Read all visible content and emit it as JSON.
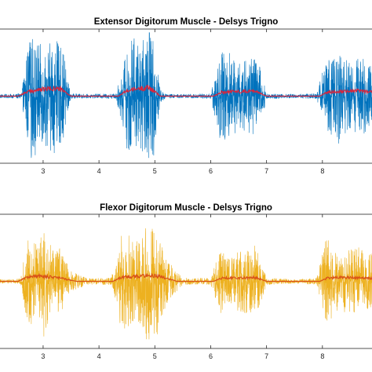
{
  "chart_data": [
    {
      "type": "line",
      "title": "Extensor Digitorum Muscle - Delsys Trigno",
      "xlabel": "",
      "ylabel": "",
      "x_ticks": [
        3,
        4,
        5,
        6,
        7,
        8
      ],
      "grid": false,
      "xlim": [
        2.2,
        9.0
      ],
      "ylim": [
        -1,
        1
      ],
      "series": [
        {
          "role": "raw-emg",
          "color": "#0072BD",
          "x": [
            2.2,
            2.5,
            2.6,
            2.65,
            2.7,
            2.8,
            2.9,
            3.0,
            3.1,
            3.2,
            3.3,
            3.4,
            3.45,
            3.5,
            3.8,
            4.3,
            4.4,
            4.5,
            4.6,
            4.7,
            4.8,
            4.9,
            5.0,
            5.05,
            5.1,
            5.2,
            5.5,
            6.0,
            6.1,
            6.2,
            6.3,
            6.4,
            6.5,
            6.6,
            6.7,
            6.8,
            6.9,
            7.0,
            7.5,
            7.9,
            8.0,
            8.1,
            8.2,
            8.3,
            8.4,
            8.5,
            8.6,
            8.7,
            8.8,
            9.0
          ],
          "amplitude": [
            0.03,
            0.03,
            0.05,
            0.25,
            0.65,
            0.9,
            0.85,
            0.7,
            0.8,
            0.85,
            0.75,
            0.55,
            0.2,
            0.04,
            0.03,
            0.04,
            0.35,
            0.8,
            0.9,
            0.75,
            0.85,
            0.95,
            0.9,
            0.5,
            0.1,
            0.03,
            0.03,
            0.04,
            0.4,
            0.7,
            0.65,
            0.55,
            0.5,
            0.55,
            0.6,
            0.65,
            0.4,
            0.04,
            0.03,
            0.04,
            0.35,
            0.55,
            0.6,
            0.65,
            0.55,
            0.5,
            0.55,
            0.6,
            0.5,
            0.4
          ]
        },
        {
          "role": "envelope",
          "color": "#D7263D",
          "x": [
            2.2,
            2.55,
            2.7,
            2.9,
            3.1,
            3.3,
            3.5,
            4.35,
            4.5,
            4.7,
            4.9,
            5.1,
            6.05,
            6.2,
            6.5,
            6.8,
            7.0,
            7.95,
            8.1,
            8.4,
            8.7,
            9.0
          ],
          "y": [
            0.0,
            0.0,
            0.06,
            0.09,
            0.11,
            0.11,
            0.0,
            0.0,
            0.08,
            0.11,
            0.13,
            0.0,
            0.0,
            0.06,
            0.07,
            0.08,
            0.0,
            0.0,
            0.06,
            0.08,
            0.08,
            0.05
          ]
        }
      ]
    },
    {
      "type": "line",
      "title": "Flexor Digitorum Muscle - Delsys Trigno",
      "xlabel": "",
      "ylabel": "",
      "x_ticks": [
        3,
        4,
        5,
        6,
        7,
        8
      ],
      "grid": false,
      "xlim": [
        2.2,
        9.0
      ],
      "ylim": [
        -1,
        1
      ],
      "series": [
        {
          "role": "raw-emg",
          "color": "#EDB120",
          "x": [
            2.2,
            2.5,
            2.6,
            2.7,
            2.8,
            2.9,
            3.0,
            3.1,
            3.2,
            3.3,
            3.5,
            3.8,
            4.2,
            4.3,
            4.4,
            4.5,
            4.7,
            4.8,
            4.9,
            5.0,
            5.1,
            5.2,
            5.5,
            6.0,
            6.1,
            6.2,
            6.3,
            6.5,
            6.7,
            6.8,
            6.9,
            7.0,
            7.5,
            7.9,
            8.0,
            8.1,
            8.2,
            8.3,
            8.4,
            8.6,
            8.8,
            9.0
          ],
          "amplitude": [
            0.03,
            0.03,
            0.05,
            0.55,
            0.7,
            0.5,
            0.8,
            0.65,
            0.4,
            0.5,
            0.15,
            0.05,
            0.05,
            0.3,
            0.65,
            0.7,
            0.6,
            0.75,
            0.9,
            0.85,
            0.7,
            0.35,
            0.05,
            0.05,
            0.3,
            0.5,
            0.4,
            0.45,
            0.5,
            0.55,
            0.35,
            0.05,
            0.03,
            0.05,
            0.4,
            0.65,
            0.5,
            0.35,
            0.45,
            0.5,
            0.45,
            0.35
          ]
        },
        {
          "role": "envelope",
          "color": "#D95319",
          "x": [
            2.2,
            2.55,
            2.7,
            2.9,
            3.1,
            3.3,
            3.6,
            4.25,
            4.4,
            4.6,
            4.9,
            5.1,
            5.4,
            6.05,
            6.2,
            6.5,
            6.8,
            7.0,
            7.95,
            8.1,
            8.4,
            8.7,
            9.0
          ],
          "y": [
            0.0,
            0.0,
            0.06,
            0.08,
            0.07,
            0.05,
            0.0,
            0.0,
            0.06,
            0.07,
            0.09,
            0.07,
            0.0,
            0.0,
            0.05,
            0.05,
            0.06,
            0.0,
            0.0,
            0.05,
            0.06,
            0.05,
            0.04
          ]
        }
      ]
    }
  ]
}
